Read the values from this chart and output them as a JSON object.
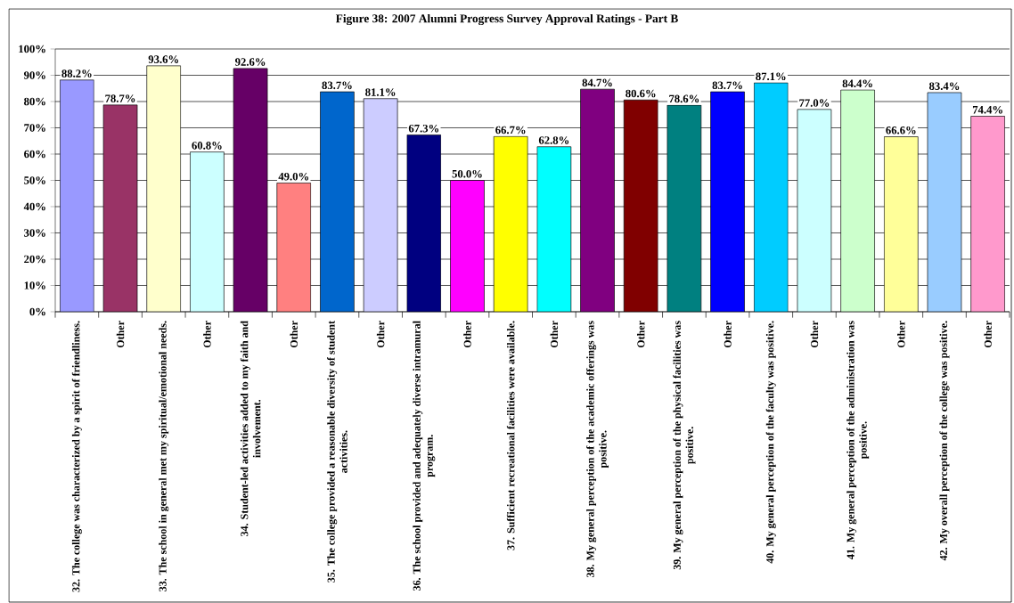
{
  "chart_data": {
    "type": "bar",
    "title": "Figure 38: 2007 Alumni Progress Survey Approval Ratings - Part B",
    "categories": [
      "32. The college was characterized by a spirit of friendliness.",
      "Other",
      "33. The school in general met my spiritual/emotional needs.",
      "Other",
      "34. Student-led activities added to my faith and involvement.",
      "Other",
      "35. The college provided a reasonable diversity of student activities.",
      "Other",
      "36. The school provided and adequately diverse intramural program.",
      "Other",
      "37. Sufficient recreational facilities were available.",
      "Other",
      "38. My general perception of the academic offerings was positive.",
      "Other",
      "39. My general perception of the physical facilities was positive.",
      "Other",
      "40. My general perception of the faculty was positive.",
      "Other",
      "41. My general perception of the administration was positive.",
      "Other",
      "42. My overall perception of the college was positive.",
      "Other"
    ],
    "values": [
      88.2,
      78.7,
      93.6,
      60.8,
      92.6,
      49.0,
      83.7,
      81.1,
      67.3,
      50.0,
      66.7,
      62.8,
      84.7,
      80.6,
      78.6,
      83.7,
      87.1,
      77.0,
      84.4,
      66.6,
      83.4,
      74.4
    ],
    "value_labels": [
      "88.2%",
      "78.7%",
      "93.6%",
      "60.8%",
      "92.6%",
      "49.0%",
      "83.7%",
      "81.1%",
      "67.3%",
      "50.0%",
      "66.7%",
      "62.8%",
      "84.7%",
      "80.6%",
      "78.6%",
      "83.7%",
      "87.1%",
      "77.0%",
      "84.4%",
      "66.6%",
      "83.4%",
      "74.4%"
    ],
    "colors": [
      "#9999ff",
      "#993366",
      "#ffffcc",
      "#ccffff",
      "#660066",
      "#ff8080",
      "#0066cc",
      "#ccccff",
      "#000080",
      "#ff00ff",
      "#ffff00",
      "#00ffff",
      "#800080",
      "#800000",
      "#008080",
      "#0000ff",
      "#00ccff",
      "#ccffff",
      "#ccffcc",
      "#ffff99",
      "#99ccff",
      "#ff99cc"
    ],
    "ylim": [
      0,
      100
    ],
    "yticks": [
      {
        "value": 0,
        "label": "0%"
      },
      {
        "value": 10,
        "label": "10%"
      },
      {
        "value": 20,
        "label": "20%"
      },
      {
        "value": 30,
        "label": "30%"
      },
      {
        "value": 40,
        "label": "40%"
      },
      {
        "value": 50,
        "label": "50%"
      },
      {
        "value": 60,
        "label": "60%"
      },
      {
        "value": 70,
        "label": "70%"
      },
      {
        "value": 80,
        "label": "80%"
      },
      {
        "value": 90,
        "label": "90%"
      },
      {
        "value": 100,
        "label": "100%"
      }
    ],
    "grid": "y"
  }
}
